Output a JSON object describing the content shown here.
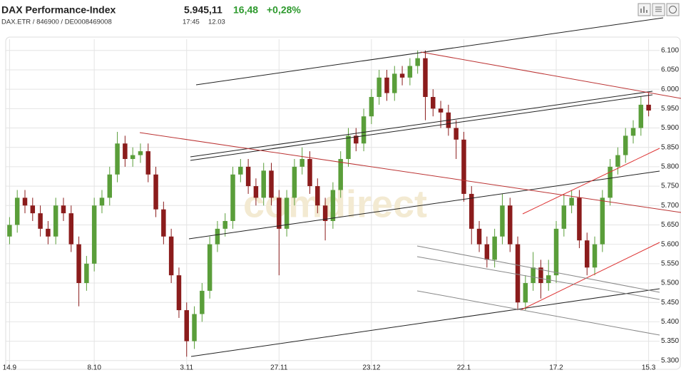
{
  "chart_data": {
    "type": "candlestick",
    "title": "DAX Performance-Index",
    "subtitle": "DAX.ETR / 846900 / DE0008469008",
    "last": "5.945,11",
    "change": "16,48",
    "change_pct": "+0,28%",
    "time": "17:45",
    "date": "12.03",
    "watermark": "comdirect",
    "grid": true,
    "ylim": [
      5283,
      6129
    ],
    "yticks": [
      {
        "value": 5300,
        "label": "5.300"
      },
      {
        "value": 5350,
        "label": "5.350"
      },
      {
        "value": 5400,
        "label": "5.400"
      },
      {
        "value": 5450,
        "label": "5.450"
      },
      {
        "value": 5500,
        "label": "5.500"
      },
      {
        "value": 5550,
        "label": "5.550"
      },
      {
        "value": 5600,
        "label": "5.600"
      },
      {
        "value": 5650,
        "label": "5.650"
      },
      {
        "value": 5700,
        "label": "5.700"
      },
      {
        "value": 5750,
        "label": "5.750"
      },
      {
        "value": 5800,
        "label": "5.800"
      },
      {
        "value": 5850,
        "label": "5.850"
      },
      {
        "value": 5900,
        "label": "5.900"
      },
      {
        "value": 5950,
        "label": "5.950"
      },
      {
        "value": 6000,
        "label": "6.000"
      },
      {
        "value": 6050,
        "label": "6.050"
      },
      {
        "value": 6100,
        "label": "6.100"
      }
    ],
    "categories": [
      "14.9",
      null,
      null,
      null,
      null,
      null,
      null,
      null,
      null,
      null,
      null,
      "8.10",
      null,
      null,
      null,
      null,
      null,
      null,
      null,
      null,
      null,
      null,
      null,
      "3.11",
      null,
      null,
      null,
      null,
      null,
      null,
      null,
      null,
      null,
      null,
      null,
      "27.11",
      null,
      null,
      null,
      null,
      null,
      null,
      null,
      null,
      null,
      null,
      null,
      "23.12",
      null,
      null,
      null,
      null,
      null,
      null,
      null,
      null,
      null,
      null,
      null,
      "22.1",
      null,
      null,
      null,
      null,
      null,
      null,
      null,
      null,
      null,
      null,
      null,
      "17.2",
      null,
      null,
      null,
      null,
      null,
      null,
      null,
      null,
      null,
      null,
      null,
      "15.3"
    ],
    "series": [
      {
        "up_color": "#5a9e3a",
        "down_color": "#8b1c1c",
        "open": [
          5620,
          5650,
          5720,
          5700,
          5680,
          5640,
          5620,
          5700,
          5680,
          5600,
          5500,
          5550,
          5700,
          5720,
          5780,
          5860,
          5820,
          5830,
          5840,
          5780,
          5690,
          5620,
          5520,
          5430,
          5350,
          5420,
          5480,
          5600,
          5640,
          5660,
          5780,
          5800,
          5750,
          5720,
          5790,
          5720,
          5640,
          5720,
          5800,
          5820,
          5750,
          5700,
          5660,
          5740,
          5820,
          5880,
          5860,
          5930,
          5980,
          6030,
          5990,
          6040,
          6030,
          6060,
          6080,
          5980,
          5950,
          5940,
          5900,
          5870,
          5730,
          5640,
          5600,
          5560,
          5620,
          5700,
          5600,
          5450,
          5500,
          5540,
          5500,
          5520,
          5640,
          5700,
          5720,
          5610,
          5540,
          5600,
          5720,
          5800,
          5830,
          5880,
          5900,
          5960
        ],
        "high": [
          5670,
          5740,
          5740,
          5720,
          5700,
          5660,
          5720,
          5720,
          5700,
          5620,
          5570,
          5720,
          5740,
          5800,
          5890,
          5880,
          5850,
          5860,
          5860,
          5800,
          5710,
          5640,
          5540,
          5450,
          5440,
          5500,
          5620,
          5660,
          5680,
          5800,
          5820,
          5820,
          5770,
          5810,
          5810,
          5740,
          5740,
          5820,
          5850,
          5840,
          5770,
          5720,
          5760,
          5840,
          5900,
          5900,
          5950,
          6000,
          6050,
          6050,
          6060,
          6060,
          6080,
          6100,
          6100,
          6000,
          5970,
          5960,
          5920,
          5890,
          5750,
          5660,
          5620,
          5640,
          5730,
          5720,
          5620,
          5520,
          5580,
          5560,
          5560,
          5660,
          5730,
          5740,
          5740,
          5630,
          5620,
          5740,
          5820,
          5850,
          5900,
          5920,
          5980,
          5990
        ],
        "low": [
          5600,
          5630,
          5680,
          5660,
          5620,
          5600,
          5600,
          5660,
          5580,
          5440,
          5480,
          5530,
          5680,
          5700,
          5760,
          5800,
          5800,
          5810,
          5760,
          5670,
          5600,
          5500,
          5410,
          5310,
          5330,
          5400,
          5460,
          5580,
          5620,
          5640,
          5760,
          5730,
          5700,
          5700,
          5700,
          5520,
          5620,
          5700,
          5780,
          5730,
          5680,
          5610,
          5640,
          5720,
          5800,
          5840,
          5840,
          5910,
          5960,
          5970,
          5970,
          6010,
          6010,
          6040,
          5920,
          5930,
          5900,
          5880,
          5820,
          5710,
          5600,
          5580,
          5540,
          5540,
          5600,
          5580,
          5430,
          5430,
          5480,
          5460,
          5480,
          5500,
          5620,
          5680,
          5590,
          5520,
          5520,
          5580,
          5700,
          5780,
          5810,
          5860,
          5880,
          5930
        ],
        "close": [
          5650,
          5720,
          5700,
          5680,
          5640,
          5620,
          5700,
          5680,
          5600,
          5500,
          5550,
          5700,
          5720,
          5780,
          5860,
          5820,
          5830,
          5840,
          5780,
          5690,
          5620,
          5520,
          5430,
          5350,
          5420,
          5480,
          5600,
          5640,
          5660,
          5780,
          5800,
          5750,
          5720,
          5790,
          5720,
          5640,
          5720,
          5800,
          5820,
          5750,
          5700,
          5660,
          5740,
          5820,
          5880,
          5860,
          5930,
          5980,
          6030,
          5990,
          6040,
          6030,
          6060,
          6080,
          5980,
          5950,
          5940,
          5900,
          5870,
          5730,
          5640,
          5600,
          5560,
          5620,
          5700,
          5600,
          5450,
          5500,
          5540,
          5500,
          5520,
          5640,
          5700,
          5720,
          5610,
          5540,
          5600,
          5720,
          5800,
          5830,
          5880,
          5900,
          5960,
          5945
        ]
      }
    ]
  }
}
